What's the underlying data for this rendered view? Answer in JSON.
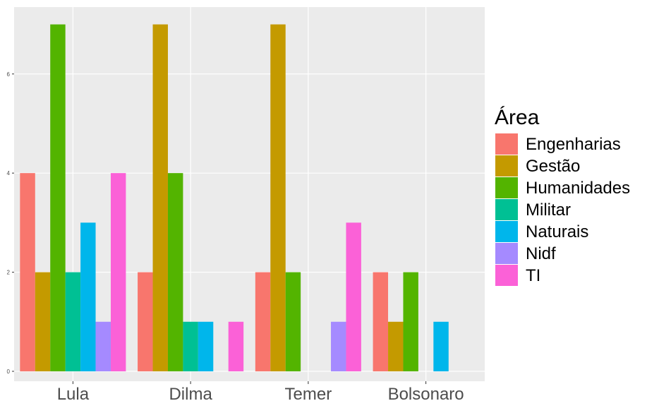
{
  "chart_data": {
    "type": "bar",
    "categories": [
      "Lula",
      "Dilma",
      "Temer",
      "Bolsonaro"
    ],
    "series": [
      {
        "name": "Engenharias",
        "color": "#F8766D",
        "values": [
          4,
          2,
          2,
          2
        ]
      },
      {
        "name": "Gestão",
        "color": "#C49A00",
        "values": [
          2,
          7,
          7,
          1
        ]
      },
      {
        "name": "Humanidades",
        "color": "#53B400",
        "values": [
          7,
          4,
          2,
          2
        ]
      },
      {
        "name": "Militar",
        "color": "#00C094",
        "values": [
          2,
          1,
          0,
          0
        ]
      },
      {
        "name": "Naturais",
        "color": "#00B6EB",
        "values": [
          3,
          1,
          0,
          1
        ]
      },
      {
        "name": "Nidf",
        "color": "#A58AFF",
        "values": [
          1,
          0,
          1,
          0
        ]
      },
      {
        "name": "TI",
        "color": "#FB61D7",
        "values": [
          4,
          1,
          3,
          0
        ]
      }
    ],
    "y_ticks": [
      0,
      2,
      4,
      6
    ],
    "ylim": [
      -0.2,
      7.35
    ],
    "xlabel": "",
    "ylabel": "",
    "legend_title": "Área",
    "legend_position": "right",
    "grid": true,
    "panel_background": "#EBEBEB",
    "grid_color": "#FFFFFF"
  }
}
